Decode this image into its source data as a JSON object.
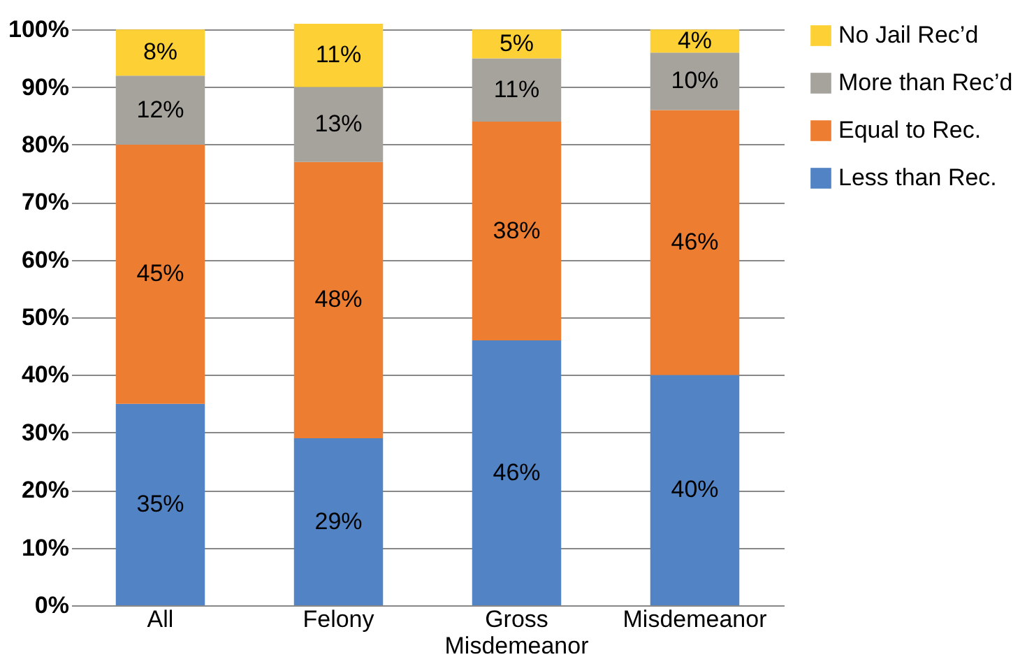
{
  "chart_data": {
    "type": "bar",
    "stacked": true,
    "categories": [
      "All",
      "Felony",
      "Gross Misdemeanor",
      "Misdemeanor"
    ],
    "series": [
      {
        "name": "Less than Rec.",
        "color": "#5283c4",
        "values": [
          35,
          29,
          46,
          40
        ],
        "value_labels": [
          "35%",
          "29%",
          "46%",
          "40%"
        ]
      },
      {
        "name": "Equal to Rec.",
        "color": "#ed7d31",
        "values": [
          45,
          48,
          38,
          46
        ],
        "value_labels": [
          "45%",
          "48%",
          "38%",
          "46%"
        ]
      },
      {
        "name": "More than Rec’d",
        "color": "#a5a39b",
        "values": [
          12,
          13,
          11,
          10
        ],
        "value_labels": [
          "12%",
          "13%",
          "11%",
          "10%"
        ]
      },
      {
        "name": "No Jail Rec’d",
        "color": "#fdd035",
        "values": [
          8,
          11,
          5,
          4
        ],
        "value_labels": [
          "8%",
          "11%",
          "5%",
          "4%"
        ]
      }
    ],
    "ylim": [
      0,
      101
    ],
    "yticks": [
      {
        "value": 0,
        "label": "0%"
      },
      {
        "value": 10,
        "label": "10%"
      },
      {
        "value": 20,
        "label": "20%"
      },
      {
        "value": 30,
        "label": "30%"
      },
      {
        "value": 40,
        "label": "40%"
      },
      {
        "value": 50,
        "label": "50%"
      },
      {
        "value": 60,
        "label": "60%"
      },
      {
        "value": 70,
        "label": "70%"
      },
      {
        "value": 80,
        "label": "80%"
      },
      {
        "value": 90,
        "label": "90%"
      },
      {
        "value": 100,
        "label": "100%"
      }
    ],
    "grid": "y",
    "legend": "right"
  }
}
